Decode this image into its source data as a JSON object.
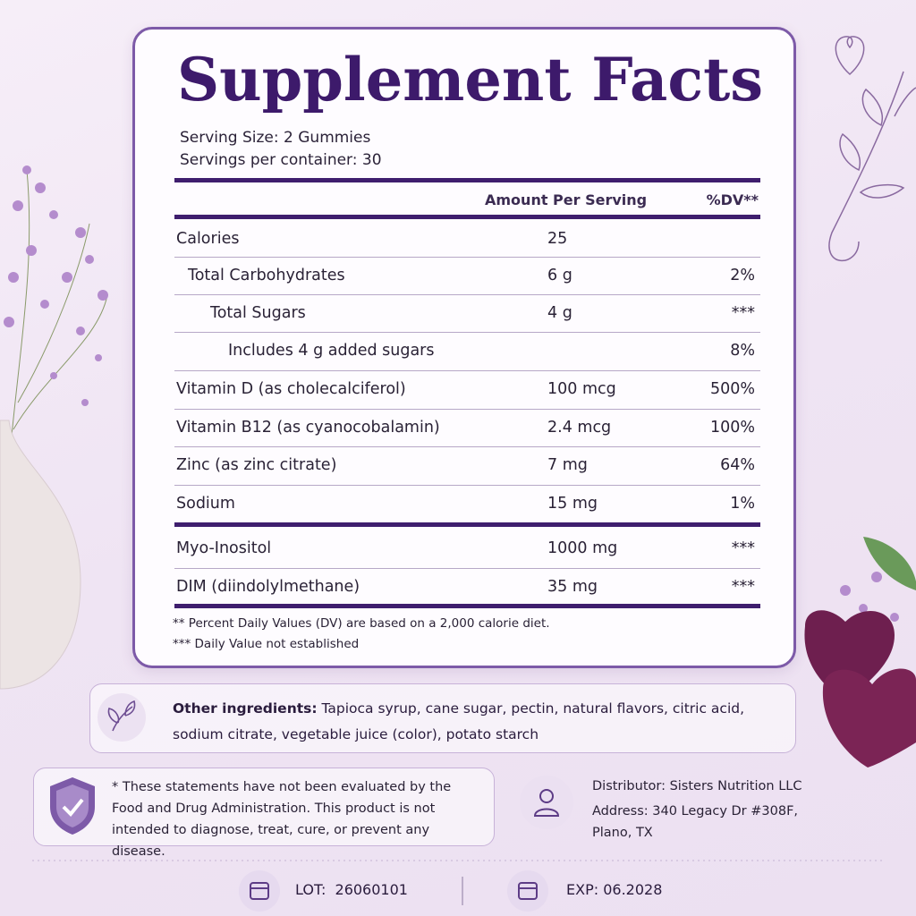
{
  "label": {
    "title": "Supplement Facts",
    "serving_size": "Serving Size: 2 Gummies",
    "servings_per_container": "Servings per container: 30",
    "header": {
      "amount": "Amount Per Serving",
      "dv": "%DV**"
    },
    "rows": [
      {
        "name": "Calories",
        "amount": "25",
        "dv": null
      },
      {
        "name": "Total Carbohydrates",
        "amount": "6 g",
        "dv": "2%"
      },
      {
        "name": "Total Sugars",
        "amount": "4 g",
        "dv": "***"
      },
      {
        "name": "Includes 4 g added sugars",
        "amount": null,
        "dv": "8%"
      },
      {
        "name": "Vitamin D (as cholecalciferol)",
        "amount": "100 mcg",
        "dv": "500%"
      },
      {
        "name": "Vitamin B12 (as cyanocobalamin)",
        "amount": "2.4 mcg",
        "dv": "100%"
      },
      {
        "name": "Zinc (as zinc citrate)",
        "amount": "7 mg",
        "dv": "64%"
      },
      {
        "name": "Sodium",
        "amount": "15 mg",
        "dv": "1%"
      },
      {
        "name": "Myo-Inositol",
        "amount": "1000 mg",
        "dv": "***"
      },
      {
        "name": "DIM (diindolylmethane)",
        "amount": "35 mg",
        "dv": "***"
      }
    ],
    "footnotes": [
      "** Percent Daily Values (DV) are based on a 2,000 calorie diet.",
      "*** Daily Value not established"
    ]
  },
  "other_ingredients": {
    "label": "Other ingredients:",
    "text": "Tapioca syrup, cane sugar, pectin, natural flavors, citric acid, sodium citrate, vegetable juice (color), potato starch"
  },
  "disclaimer": "* These statements have not been evaluated by the Food and Drug Administration. This product is not intended to diagnose, treat, cure, or prevent any disease.",
  "distributor": {
    "name": "Distributor: Sisters Nutrition LLC",
    "address": "Address: 340 Legacy Dr #308F, Plano, TX"
  },
  "lot": {
    "label": "LOT:",
    "value": "26060101"
  },
  "exp": {
    "label": "EXP:",
    "value": "06.2028"
  }
}
